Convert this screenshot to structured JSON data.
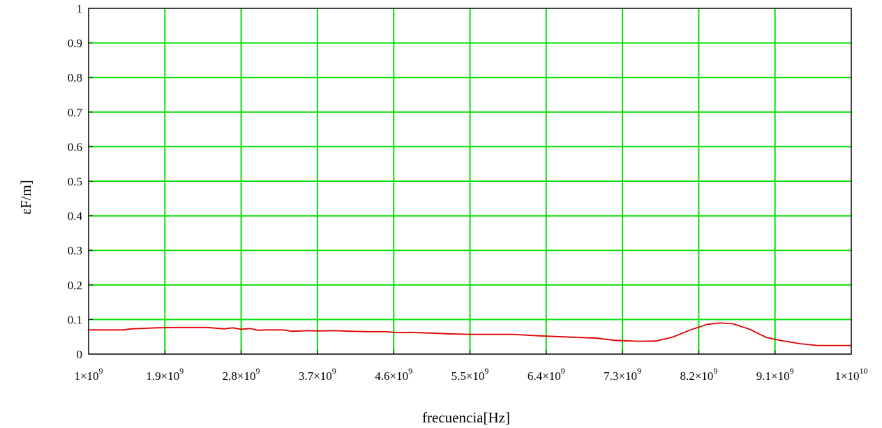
{
  "chart_data": {
    "type": "line",
    "title": "",
    "xlabel": "frecuencia[Hz]",
    "ylabel": "εF/m]",
    "xlim": [
      1000000000,
      10000000000
    ],
    "ylim": [
      0,
      1
    ],
    "grid": true,
    "x_ticks": [
      {
        "mant": "1",
        "exp": "9"
      },
      {
        "mant": "1.9",
        "exp": "9"
      },
      {
        "mant": "2.8",
        "exp": "9"
      },
      {
        "mant": "3.7",
        "exp": "9"
      },
      {
        "mant": "4.6",
        "exp": "9"
      },
      {
        "mant": "5.5",
        "exp": "9"
      },
      {
        "mant": "6.4",
        "exp": "9"
      },
      {
        "mant": "7.3",
        "exp": "9"
      },
      {
        "mant": "8.2",
        "exp": "9"
      },
      {
        "mant": "9.1",
        "exp": "9"
      },
      {
        "mant": "1",
        "exp": "10"
      }
    ],
    "y_ticks": [
      "0",
      "0.1",
      "0.2",
      "0.3",
      "0.4",
      "0.5",
      "0.6",
      "0.7",
      "0.8",
      "0.9",
      "1"
    ],
    "colors": {
      "line": "#e00000",
      "grid": "#00e000",
      "axes": "#000000"
    },
    "series": [
      {
        "x": [
          1000000000,
          1400000000,
          1500000000,
          1800000000,
          2000000000,
          2400000000,
          2600000000,
          2700000000,
          2800000000,
          2900000000,
          3000000000,
          3100000000,
          3300000000,
          3400000000,
          3600000000,
          3700000000,
          3900000000,
          4100000000,
          4300000000,
          4500000000,
          4650000000,
          4800000000,
          5000000000,
          5200000000,
          5500000000,
          6000000000,
          6300000000,
          6500000000,
          6800000000,
          7000000000,
          7200000000,
          7500000000,
          7700000000,
          7900000000,
          8100000000,
          8300000000,
          8450000000,
          8600000000,
          8800000000,
          9000000000,
          9200000000,
          9400000000,
          9600000000,
          10000000000
        ],
        "y": [
          0.07,
          0.07,
          0.073,
          0.076,
          0.077,
          0.077,
          0.073,
          0.076,
          0.072,
          0.074,
          0.069,
          0.07,
          0.07,
          0.066,
          0.068,
          0.067,
          0.068,
          0.066,
          0.065,
          0.065,
          0.062,
          0.063,
          0.061,
          0.059,
          0.057,
          0.057,
          0.053,
          0.051,
          0.048,
          0.046,
          0.04,
          0.037,
          0.038,
          0.05,
          0.07,
          0.086,
          0.09,
          0.088,
          0.072,
          0.048,
          0.038,
          0.03,
          0.025,
          0.025
        ]
      }
    ]
  }
}
